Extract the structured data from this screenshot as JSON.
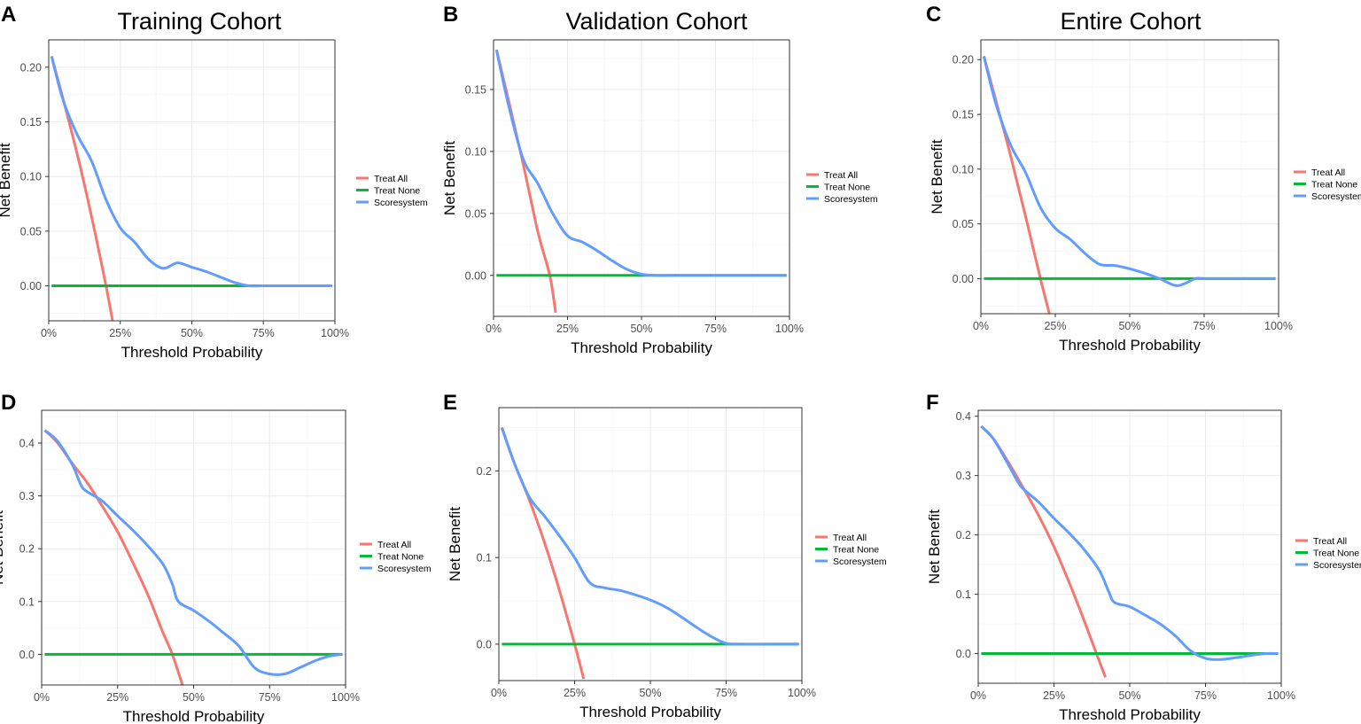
{
  "colors": {
    "treat_all": "#F8766D",
    "treat_none": "#00BA38",
    "scoresystem": "#619CFF"
  },
  "column_titles": [
    "Training Cohort",
    "Validation Cohort",
    "Entire Cohort"
  ],
  "chart_data": [
    {
      "panel": "A",
      "type": "line",
      "title": "Training Cohort",
      "xlabel": "Threshold Probability",
      "ylabel": "Net Benefit",
      "xlim": [
        0,
        1
      ],
      "ylim": [
        -0.032,
        0.225
      ],
      "xticks": [
        0,
        0.25,
        0.5,
        0.75,
        1
      ],
      "xticklabels": [
        "0%",
        "25%",
        "50%",
        "75%",
        "100%"
      ],
      "yticks": [
        0,
        0.05,
        0.1,
        0.15,
        0.2
      ],
      "yticklabels": [
        "0.00",
        "0.05",
        "0.10",
        "0.15",
        "0.20"
      ],
      "legend": [
        "Treat All",
        "Treat None",
        "Scoresystem"
      ],
      "legend_position": "right",
      "series": [
        {
          "name": "Treat All",
          "x": [
            0.01,
            0.05,
            0.1,
            0.15,
            0.2,
            0.24
          ],
          "y": [
            0.21,
            0.171,
            0.12,
            0.063,
            0.0,
            -0.056
          ]
        },
        {
          "name": "Treat None",
          "x": [
            0.01,
            0.99
          ],
          "y": [
            0,
            0
          ]
        },
        {
          "name": "Scoresystem",
          "x": [
            0.01,
            0.05,
            0.1,
            0.15,
            0.2,
            0.25,
            0.3,
            0.35,
            0.4,
            0.45,
            0.5,
            0.55,
            0.6,
            0.65,
            0.7,
            0.75,
            0.8,
            0.85,
            0.9,
            0.95,
            0.99
          ],
          "y": [
            0.21,
            0.17,
            0.138,
            0.114,
            0.079,
            0.053,
            0.04,
            0.024,
            0.016,
            0.021,
            0.017,
            0.013,
            0.008,
            0.003,
            0.0,
            0.0,
            0.0,
            0.0,
            0.0,
            0.0,
            0.0
          ]
        }
      ]
    },
    {
      "panel": "B",
      "type": "line",
      "title": "Validation Cohort",
      "xlabel": "Threshold Probability",
      "ylabel": "Net Benefit",
      "xlim": [
        0,
        1
      ],
      "ylim": [
        -0.033,
        0.19
      ],
      "xticks": [
        0,
        0.25,
        0.5,
        0.75,
        1
      ],
      "xticklabels": [
        "0%",
        "25%",
        "50%",
        "75%",
        "100%"
      ],
      "yticks": [
        0,
        0.05,
        0.1,
        0.15
      ],
      "yticklabels": [
        "0.00",
        "0.05",
        "0.10",
        "0.15"
      ],
      "legend": [
        "Treat All",
        "Treat None",
        "Scoresystem"
      ],
      "legend_position": "right",
      "series": [
        {
          "name": "Treat All",
          "x": [
            0.01,
            0.05,
            0.1,
            0.15,
            0.19,
            0.21
          ],
          "y": [
            0.182,
            0.142,
            0.09,
            0.035,
            0.0,
            -0.03
          ]
        },
        {
          "name": "Treat None",
          "x": [
            0.01,
            0.99
          ],
          "y": [
            0,
            0
          ]
        },
        {
          "name": "Scoresystem",
          "x": [
            0.01,
            0.05,
            0.1,
            0.15,
            0.2,
            0.25,
            0.3,
            0.35,
            0.4,
            0.45,
            0.5,
            0.55,
            0.6,
            0.7,
            0.8,
            0.9,
            0.99
          ],
          "y": [
            0.182,
            0.138,
            0.094,
            0.074,
            0.05,
            0.032,
            0.027,
            0.02,
            0.012,
            0.005,
            0.001,
            0.0,
            0.0,
            0.0,
            0.0,
            0.0,
            0.0
          ]
        }
      ]
    },
    {
      "panel": "C",
      "type": "line",
      "title": "Entire Cohort",
      "xlabel": "Threshold Probability",
      "ylabel": "Net Benefit",
      "xlim": [
        0,
        1
      ],
      "ylim": [
        -0.032,
        0.218
      ],
      "xticks": [
        0,
        0.25,
        0.5,
        0.75,
        1
      ],
      "xticklabels": [
        "0%",
        "25%",
        "50%",
        "75%",
        "100%"
      ],
      "yticks": [
        0,
        0.05,
        0.1,
        0.15,
        0.2
      ],
      "yticklabels": [
        "0.00",
        "0.05",
        "0.10",
        "0.15",
        "0.20"
      ],
      "legend": [
        "Treat All",
        "Treat None",
        "Scoresystem"
      ],
      "legend_position": "right",
      "series": [
        {
          "name": "Treat All",
          "x": [
            0.01,
            0.05,
            0.1,
            0.15,
            0.2,
            0.23
          ],
          "y": [
            0.203,
            0.163,
            0.112,
            0.057,
            0.0,
            -0.032
          ]
        },
        {
          "name": "Treat None",
          "x": [
            0.01,
            0.99
          ],
          "y": [
            0,
            0
          ]
        },
        {
          "name": "Scoresystem",
          "x": [
            0.01,
            0.05,
            0.1,
            0.15,
            0.2,
            0.25,
            0.3,
            0.35,
            0.4,
            0.45,
            0.5,
            0.55,
            0.6,
            0.65,
            0.68,
            0.72,
            0.75,
            0.8,
            0.9,
            0.99
          ],
          "y": [
            0.203,
            0.16,
            0.122,
            0.097,
            0.065,
            0.046,
            0.036,
            0.023,
            0.013,
            0.012,
            0.009,
            0.005,
            0.0,
            -0.006,
            -0.005,
            0.0,
            0.0,
            0.0,
            0.0,
            0.0
          ]
        }
      ]
    },
    {
      "panel": "D",
      "type": "line",
      "title": "",
      "xlabel": "Threshold Probability",
      "ylabel": "Net Benefit",
      "xlim": [
        0,
        1
      ],
      "ylim": [
        -0.058,
        0.462
      ],
      "xticks": [
        0,
        0.25,
        0.5,
        0.75,
        1
      ],
      "xticklabels": [
        "0%",
        "25%",
        "50%",
        "75%",
        "100%"
      ],
      "yticks": [
        0,
        0.1,
        0.2,
        0.3,
        0.4
      ],
      "yticklabels": [
        "0.0",
        "0.1",
        "0.2",
        "0.3",
        "0.4"
      ],
      "legend": [
        "Treat All",
        "Treat None",
        "Scoresystem"
      ],
      "legend_position": "right",
      "series": [
        {
          "name": "Treat All",
          "x": [
            0.01,
            0.05,
            0.1,
            0.15,
            0.2,
            0.25,
            0.3,
            0.35,
            0.4,
            0.43,
            0.47
          ],
          "y": [
            0.424,
            0.402,
            0.362,
            0.325,
            0.28,
            0.232,
            0.174,
            0.112,
            0.04,
            0.0,
            -0.07
          ]
        },
        {
          "name": "Treat None",
          "x": [
            0.01,
            0.99
          ],
          "y": [
            0,
            0
          ]
        },
        {
          "name": "Scoresystem",
          "x": [
            0.01,
            0.05,
            0.1,
            0.13,
            0.15,
            0.2,
            0.25,
            0.3,
            0.35,
            0.4,
            0.43,
            0.45,
            0.5,
            0.55,
            0.6,
            0.65,
            0.7,
            0.75,
            0.8,
            0.85,
            0.9,
            0.95,
            0.99
          ],
          "y": [
            0.424,
            0.405,
            0.36,
            0.32,
            0.308,
            0.29,
            0.262,
            0.235,
            0.205,
            0.17,
            0.133,
            0.1,
            0.083,
            0.063,
            0.04,
            0.015,
            -0.025,
            -0.037,
            -0.037,
            -0.025,
            -0.012,
            -0.003,
            0.0
          ]
        }
      ]
    },
    {
      "panel": "E",
      "type": "line",
      "title": "",
      "xlabel": "Threshold Probability",
      "ylabel": "Net Benefit",
      "xlim": [
        0,
        1
      ],
      "ylim": [
        -0.042,
        0.273
      ],
      "xticks": [
        0,
        0.25,
        0.5,
        0.75,
        1
      ],
      "xticklabels": [
        "0%",
        "25%",
        "50%",
        "75%",
        "100%"
      ],
      "yticks": [
        0,
        0.1,
        0.2
      ],
      "yticklabels": [
        "0.0",
        "0.1",
        "0.2"
      ],
      "legend": [
        "Treat All",
        "Treat None",
        "Scoresystem"
      ],
      "legend_position": "right",
      "series": [
        {
          "name": "Treat All",
          "x": [
            0.01,
            0.05,
            0.1,
            0.15,
            0.2,
            0.25,
            0.28
          ],
          "y": [
            0.25,
            0.21,
            0.167,
            0.118,
            0.062,
            0.0,
            -0.04
          ]
        },
        {
          "name": "Treat None",
          "x": [
            0.01,
            0.99
          ],
          "y": [
            0,
            0
          ]
        },
        {
          "name": "Scoresystem",
          "x": [
            0.01,
            0.05,
            0.1,
            0.15,
            0.2,
            0.25,
            0.3,
            0.35,
            0.4,
            0.45,
            0.5,
            0.55,
            0.6,
            0.65,
            0.7,
            0.75,
            0.8,
            0.9,
            0.99
          ],
          "y": [
            0.25,
            0.21,
            0.17,
            0.148,
            0.125,
            0.1,
            0.071,
            0.065,
            0.062,
            0.057,
            0.051,
            0.043,
            0.032,
            0.02,
            0.009,
            0.001,
            0.0,
            0.0,
            0.0
          ]
        }
      ]
    },
    {
      "panel": "F",
      "type": "line",
      "title": "",
      "xlabel": "Threshold Probability",
      "ylabel": "Net Benefit",
      "xlim": [
        0,
        1
      ],
      "ylim": [
        -0.05,
        0.41
      ],
      "xticks": [
        0,
        0.25,
        0.5,
        0.75,
        1
      ],
      "xticklabels": [
        "0%",
        "25%",
        "50%",
        "75%",
        "100%"
      ],
      "yticks": [
        0,
        0.1,
        0.2,
        0.3,
        0.4
      ],
      "yticklabels": [
        "0.0",
        "0.1",
        "0.2",
        "0.3",
        "0.4"
      ],
      "legend": [
        "Treat All",
        "Treat None",
        "Scoresystem"
      ],
      "legend_position": "right",
      "series": [
        {
          "name": "Treat All",
          "x": [
            0.01,
            0.05,
            0.1,
            0.15,
            0.2,
            0.25,
            0.3,
            0.35,
            0.39,
            0.42
          ],
          "y": [
            0.383,
            0.362,
            0.322,
            0.278,
            0.232,
            0.18,
            0.12,
            0.055,
            0.0,
            -0.04
          ]
        },
        {
          "name": "Treat None",
          "x": [
            0.01,
            0.99
          ],
          "y": [
            0,
            0
          ]
        },
        {
          "name": "Scoresystem",
          "x": [
            0.01,
            0.05,
            0.1,
            0.13,
            0.15,
            0.2,
            0.25,
            0.3,
            0.35,
            0.4,
            0.43,
            0.45,
            0.5,
            0.55,
            0.6,
            0.65,
            0.7,
            0.75,
            0.8,
            0.85,
            0.9,
            0.95,
            0.99
          ],
          "y": [
            0.383,
            0.362,
            0.318,
            0.29,
            0.277,
            0.255,
            0.228,
            0.203,
            0.175,
            0.14,
            0.105,
            0.086,
            0.079,
            0.065,
            0.05,
            0.03,
            0.005,
            -0.008,
            -0.01,
            -0.007,
            -0.003,
            0.0,
            0.0
          ]
        }
      ]
    }
  ]
}
